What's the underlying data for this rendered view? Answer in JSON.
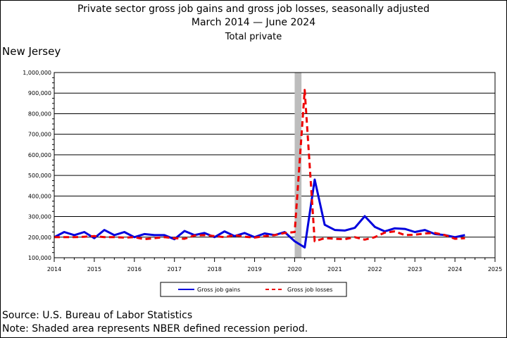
{
  "title": "Private sector gross job gains and gross job losses, seasonally adjusted",
  "subtitle_range": "March 2014  — June 2024",
  "subtitle_series": "Total private",
  "region": "New Jersey",
  "source": "Source: U.S. Bureau of Labor Statistics",
  "note": "Note: Shaded area represents NBER defined recession period.",
  "chart_data": {
    "type": "line",
    "title": "Private sector gross job gains and gross job losses, seasonally adjusted",
    "xlabel": "",
    "ylabel": "",
    "xlim": [
      2014,
      2025
    ],
    "ylim": [
      100000,
      1000000
    ],
    "x_ticks": [
      "2014",
      "2015",
      "2016",
      "2017",
      "2018",
      "2019",
      "2020",
      "2021",
      "2022",
      "2023",
      "2024",
      "2025"
    ],
    "y_ticks": [
      "100,000",
      "200,000",
      "300,000",
      "400,000",
      "500,000",
      "600,000",
      "700,000",
      "800,000",
      "900,000",
      "1,000,000"
    ],
    "grid": "horizontal",
    "legend_position": "bottom",
    "recession": {
      "start": 2020.0,
      "end": 2020.17
    },
    "x": [
      2014.0,
      2014.25,
      2014.5,
      2014.75,
      2015.0,
      2015.25,
      2015.5,
      2015.75,
      2016.0,
      2016.25,
      2016.5,
      2016.75,
      2017.0,
      2017.25,
      2017.5,
      2017.75,
      2018.0,
      2018.25,
      2018.5,
      2018.75,
      2019.0,
      2019.25,
      2019.5,
      2019.75,
      2020.0,
      2020.25,
      2020.5,
      2020.75,
      2021.0,
      2021.25,
      2021.5,
      2021.75,
      2022.0,
      2022.25,
      2022.5,
      2022.75,
      2023.0,
      2023.25,
      2023.5,
      2023.75,
      2024.0,
      2024.25
    ],
    "series": [
      {
        "name": "Gross job gains",
        "color": "#0000dd",
        "style": "solid",
        "values": [
          200000,
          225000,
          210000,
          225000,
          195000,
          235000,
          210000,
          225000,
          200000,
          215000,
          210000,
          210000,
          190000,
          230000,
          210000,
          220000,
          200000,
          228000,
          205000,
          220000,
          200000,
          218000,
          210000,
          225000,
          180000,
          150000,
          480000,
          260000,
          235000,
          232000,
          245000,
          302000,
          250000,
          228000,
          243000,
          240000,
          225000,
          235000,
          215000,
          210000,
          200000,
          210000
        ]
      },
      {
        "name": "Gross job losses",
        "color": "#ee0000",
        "style": "dashed",
        "values": [
          200000,
          200000,
          200000,
          202000,
          205000,
          200000,
          200000,
          198000,
          200000,
          190000,
          195000,
          200000,
          195000,
          192000,
          208000,
          210000,
          205000,
          200000,
          210000,
          202000,
          198000,
          205000,
          210000,
          220000,
          225000,
          915000,
          180000,
          195000,
          192000,
          190000,
          200000,
          188000,
          200000,
          222000,
          228000,
          210000,
          212000,
          218000,
          220000,
          210000,
          192000,
          195000
        ]
      }
    ]
  }
}
